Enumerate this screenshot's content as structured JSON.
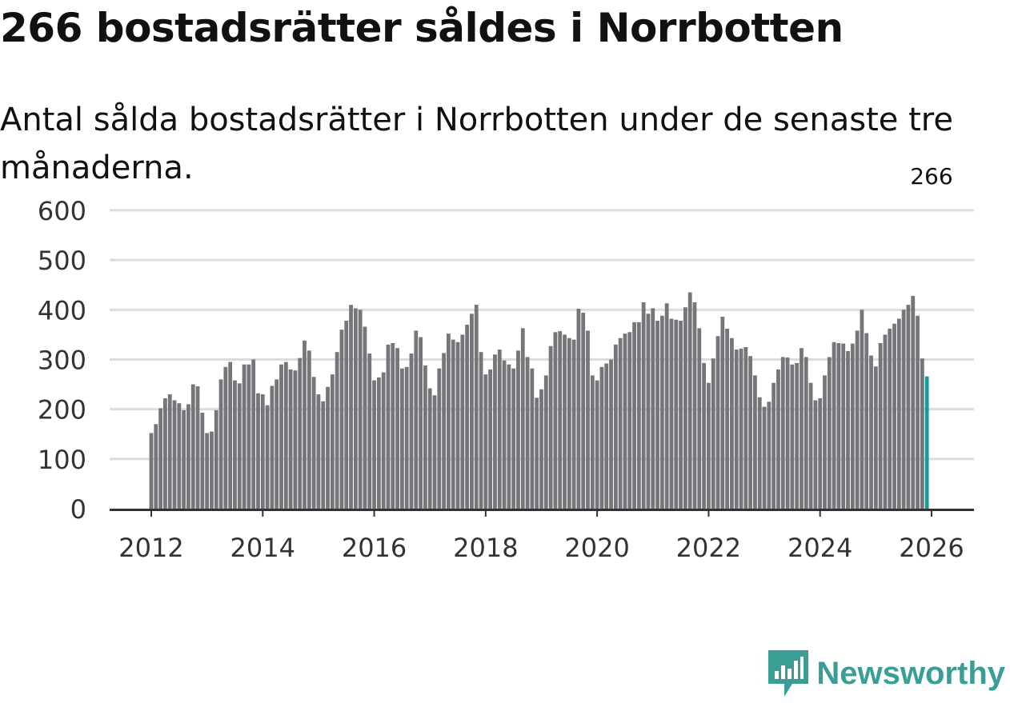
{
  "title": "266 bostadsrätter såldes i Norrbotten",
  "subtitle": "Antal sålda bostadsrätter i Norrbotten under de senaste tre månaderna.",
  "brand": {
    "name": "Newsworthy",
    "color": "#3a9e97"
  },
  "colors": {
    "bar": "#76757a",
    "highlight": "#1a9b93",
    "grid": "#dcdcdc",
    "axis": "#333333"
  },
  "chart_data": {
    "type": "bar",
    "x_start": {
      "year": 2012,
      "month": 1
    },
    "ylim": [
      0,
      600
    ],
    "yticks": [
      0,
      100,
      200,
      300,
      400,
      500,
      600
    ],
    "xticks": [
      2012,
      2014,
      2016,
      2018,
      2020,
      2022,
      2024,
      2026
    ],
    "xlabel": "",
    "ylabel": "",
    "annotation": {
      "label": "266",
      "index": 168
    },
    "values": [
      152,
      170,
      202,
      222,
      230,
      218,
      212,
      198,
      210,
      250,
      246,
      193,
      152,
      155,
      198,
      260,
      285,
      295,
      258,
      252,
      290,
      290,
      300,
      232,
      230,
      208,
      247,
      260,
      290,
      295,
      280,
      278,
      303,
      338,
      318,
      265,
      230,
      216,
      245,
      270,
      315,
      360,
      378,
      410,
      403,
      400,
      366,
      312,
      258,
      264,
      274,
      330,
      333,
      323,
      282,
      285,
      312,
      358,
      345,
      288,
      242,
      228,
      282,
      313,
      352,
      340,
      335,
      350,
      370,
      392,
      410,
      315,
      270,
      280,
      310,
      320,
      298,
      290,
      282,
      318,
      363,
      305,
      282,
      223,
      240,
      268,
      327,
      355,
      357,
      350,
      343,
      340,
      402,
      394,
      358,
      268,
      258,
      285,
      292,
      300,
      330,
      343,
      352,
      355,
      375,
      375,
      415,
      392,
      403,
      378,
      388,
      413,
      382,
      380,
      378,
      405,
      435,
      415,
      363,
      293,
      253,
      302,
      347,
      386,
      362,
      343,
      320,
      322,
      325,
      307,
      268,
      224,
      205,
      215,
      253,
      280,
      305,
      304,
      290,
      293,
      323,
      305,
      253,
      218,
      222,
      268,
      305,
      335,
      333,
      332,
      317,
      332,
      358,
      400,
      353,
      308,
      286,
      333,
      350,
      362,
      372,
      382,
      400,
      410,
      428,
      388,
      302,
      266
    ]
  }
}
